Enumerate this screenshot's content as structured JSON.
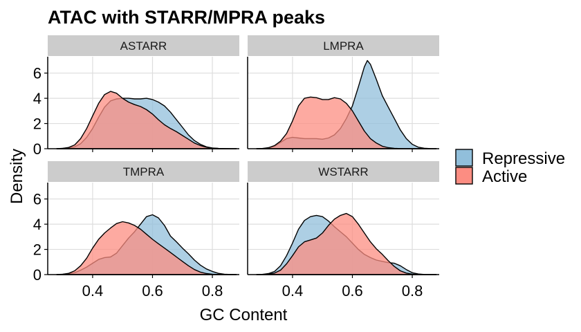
{
  "chart_data": {
    "type": "area",
    "chart_kind": "density",
    "title": "ATAC with STARR/MPRA peaks",
    "xlabel": "GC Content",
    "ylabel": "Density",
    "xlim": [
      0.25,
      0.89
    ],
    "ylim": [
      0,
      7.3
    ],
    "xticks": [
      0.4,
      0.6,
      0.8
    ],
    "yticks": [
      0,
      2,
      4,
      6
    ],
    "grid": true,
    "legend": {
      "position": "right",
      "entries": [
        {
          "label": "Repressive",
          "color": "#91BFDB"
        },
        {
          "label": "Active",
          "color": "#FC8D82"
        }
      ]
    },
    "colors": {
      "Repressive": "#91BFDB",
      "Active": "#FC8D82",
      "outline": "#000000",
      "strip": "#CCCCCC",
      "gridline": "#DDDDDD"
    },
    "facets": [
      {
        "label": "ASTARR",
        "series": [
          {
            "name": "Repressive",
            "x": [
              0.28,
              0.3,
              0.32,
              0.34,
              0.36,
              0.38,
              0.4,
              0.42,
              0.44,
              0.46,
              0.48,
              0.5,
              0.52,
              0.54,
              0.56,
              0.58,
              0.6,
              0.62,
              0.64,
              0.66,
              0.68,
              0.7,
              0.72,
              0.74,
              0.76,
              0.78,
              0.8,
              0.82,
              0.84,
              0.86,
              0.88
            ],
            "y": [
              0,
              0.02,
              0.05,
              0.15,
              0.4,
              0.9,
              1.6,
              2.5,
              3.3,
              3.8,
              3.95,
              4.0,
              4.0,
              3.95,
              3.95,
              4.0,
              3.9,
              3.7,
              3.4,
              2.9,
              2.3,
              1.7,
              1.1,
              0.65,
              0.35,
              0.15,
              0.06,
              0.02,
              0.01,
              0,
              0
            ]
          },
          {
            "name": "Active",
            "x": [
              0.28,
              0.3,
              0.32,
              0.34,
              0.36,
              0.38,
              0.4,
              0.42,
              0.44,
              0.46,
              0.48,
              0.5,
              0.52,
              0.54,
              0.56,
              0.58,
              0.6,
              0.62,
              0.64,
              0.66,
              0.68,
              0.7,
              0.72,
              0.74,
              0.76,
              0.78,
              0.8,
              0.82,
              0.84,
              0.86,
              0.88
            ],
            "y": [
              0,
              0.03,
              0.1,
              0.3,
              0.8,
              1.6,
              2.6,
              3.6,
              4.3,
              4.55,
              4.4,
              4.0,
              3.7,
              3.5,
              3.35,
              3.1,
              2.75,
              2.3,
              1.9,
              1.6,
              1.35,
              1.05,
              0.75,
              0.45,
              0.25,
              0.12,
              0.05,
              0.02,
              0.01,
              0,
              0
            ]
          }
        ]
      },
      {
        "label": "LMPRA",
        "series": [
          {
            "name": "Repressive",
            "x": [
              0.28,
              0.3,
              0.32,
              0.34,
              0.36,
              0.38,
              0.4,
              0.42,
              0.44,
              0.46,
              0.48,
              0.5,
              0.52,
              0.54,
              0.56,
              0.58,
              0.6,
              0.62,
              0.64,
              0.65,
              0.66,
              0.68,
              0.7,
              0.72,
              0.74,
              0.76,
              0.78,
              0.8,
              0.82,
              0.84,
              0.86,
              0.88
            ],
            "y": [
              0,
              0.01,
              0.05,
              0.2,
              0.5,
              0.8,
              0.9,
              0.85,
              0.8,
              0.8,
              0.8,
              0.75,
              0.85,
              1.1,
              1.6,
              2.4,
              3.4,
              4.9,
              6.5,
              7.0,
              6.7,
              5.5,
              4.2,
              3.3,
              2.4,
              1.5,
              0.8,
              0.35,
              0.12,
              0.04,
              0.01,
              0
            ]
          },
          {
            "name": "Active",
            "x": [
              0.28,
              0.3,
              0.32,
              0.34,
              0.36,
              0.38,
              0.4,
              0.42,
              0.44,
              0.46,
              0.48,
              0.5,
              0.52,
              0.54,
              0.56,
              0.58,
              0.6,
              0.62,
              0.64,
              0.66,
              0.68,
              0.7,
              0.72,
              0.74,
              0.76,
              0.78,
              0.8,
              0.82,
              0.84,
              0.86,
              0.88
            ],
            "y": [
              0,
              0.02,
              0.08,
              0.25,
              0.6,
              1.2,
              2.2,
              3.4,
              4.0,
              4.1,
              4.05,
              3.9,
              3.9,
              4.05,
              3.95,
              3.6,
              3.0,
              2.2,
              1.4,
              0.8,
              0.45,
              0.2,
              0.08,
              0.03,
              0.01,
              0,
              0,
              0,
              0,
              0,
              0
            ]
          }
        ]
      },
      {
        "label": "TMPRA",
        "series": [
          {
            "name": "Repressive",
            "x": [
              0.28,
              0.3,
              0.32,
              0.34,
              0.36,
              0.38,
              0.4,
              0.42,
              0.44,
              0.46,
              0.48,
              0.5,
              0.52,
              0.54,
              0.56,
              0.58,
              0.6,
              0.62,
              0.64,
              0.66,
              0.68,
              0.7,
              0.72,
              0.74,
              0.76,
              0.78,
              0.8,
              0.82,
              0.84,
              0.86,
              0.88
            ],
            "y": [
              0,
              0.02,
              0.06,
              0.15,
              0.35,
              0.6,
              0.9,
              1.2,
              1.35,
              1.4,
              1.7,
              2.3,
              2.9,
              3.4,
              4.0,
              4.6,
              4.75,
              4.5,
              3.9,
              3.05,
              2.6,
              2.1,
              1.65,
              1.15,
              0.75,
              0.45,
              0.25,
              0.1,
              0.03,
              0.01,
              0
            ]
          },
          {
            "name": "Active",
            "x": [
              0.28,
              0.3,
              0.32,
              0.34,
              0.36,
              0.38,
              0.4,
              0.42,
              0.44,
              0.46,
              0.48,
              0.5,
              0.52,
              0.54,
              0.56,
              0.58,
              0.6,
              0.62,
              0.64,
              0.66,
              0.68,
              0.7,
              0.72,
              0.74,
              0.76,
              0.78,
              0.8,
              0.82,
              0.84,
              0.86,
              0.88
            ],
            "y": [
              0,
              0.03,
              0.1,
              0.3,
              0.7,
              1.3,
              2.1,
              2.8,
              3.3,
              3.7,
              4.05,
              4.2,
              4.1,
              3.9,
              3.6,
              3.2,
              2.8,
              2.45,
              2.1,
              1.75,
              1.4,
              1.05,
              0.7,
              0.4,
              0.2,
              0.08,
              0.03,
              0.01,
              0,
              0,
              0
            ]
          }
        ]
      },
      {
        "label": "WSTARR",
        "series": [
          {
            "name": "Repressive",
            "x": [
              0.28,
              0.3,
              0.32,
              0.34,
              0.36,
              0.38,
              0.4,
              0.42,
              0.44,
              0.46,
              0.48,
              0.5,
              0.52,
              0.54,
              0.56,
              0.58,
              0.6,
              0.62,
              0.64,
              0.66,
              0.68,
              0.7,
              0.72,
              0.74,
              0.76,
              0.78,
              0.8,
              0.82,
              0.84,
              0.86,
              0.88
            ],
            "y": [
              0,
              0.02,
              0.08,
              0.25,
              0.7,
              1.5,
              2.5,
              3.6,
              4.3,
              4.6,
              4.7,
              4.6,
              4.25,
              3.8,
              3.4,
              3.0,
              2.5,
              2.0,
              1.6,
              1.35,
              1.15,
              1.05,
              0.95,
              0.9,
              0.7,
              0.4,
              0.15,
              0.05,
              0.01,
              0,
              0
            ]
          },
          {
            "name": "Active",
            "x": [
              0.28,
              0.3,
              0.32,
              0.34,
              0.36,
              0.38,
              0.4,
              0.42,
              0.44,
              0.46,
              0.48,
              0.5,
              0.52,
              0.54,
              0.56,
              0.58,
              0.6,
              0.62,
              0.64,
              0.66,
              0.68,
              0.7,
              0.72,
              0.74,
              0.76,
              0.78,
              0.8,
              0.82,
              0.84,
              0.86,
              0.88
            ],
            "y": [
              0,
              0.01,
              0.04,
              0.12,
              0.35,
              0.85,
              1.5,
              2.2,
              2.6,
              2.75,
              2.9,
              3.3,
              3.9,
              4.4,
              4.7,
              4.85,
              4.6,
              4.0,
              3.3,
              2.6,
              2.05,
              1.6,
              1.1,
              0.65,
              0.3,
              0.12,
              0.04,
              0.01,
              0,
              0,
              0
            ]
          }
        ]
      }
    ]
  }
}
